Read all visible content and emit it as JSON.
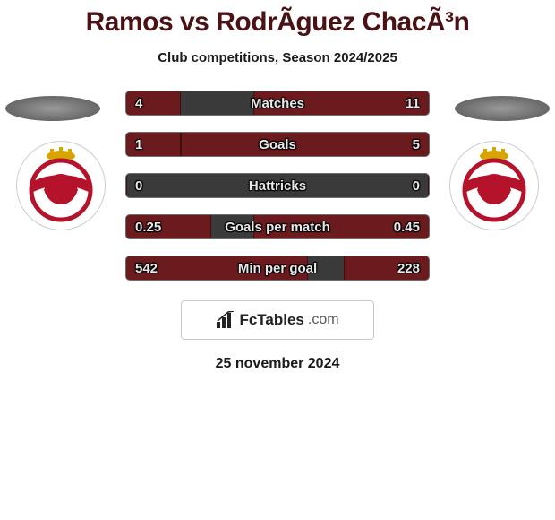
{
  "title": "Ramos vs RodrÃ­guez ChacÃ³n",
  "subtitle": "Club competitions, Season 2024/2025",
  "date": "25 november 2024",
  "brand": {
    "name": "FcTables",
    "domain": ".com"
  },
  "colors": {
    "bar_bg": "#3a3a3a",
    "bar_border": "#6d6d6d",
    "bar_fill": "#6b1a1e",
    "title": "#4a1214"
  },
  "bars": [
    {
      "label": "Matches",
      "left_val": "4",
      "right_val": "11",
      "left_pct": 18,
      "right_pct": 58
    },
    {
      "label": "Goals",
      "left_val": "1",
      "right_val": "5",
      "left_pct": 18,
      "right_pct": 82
    },
    {
      "label": "Hattricks",
      "left_val": "0",
      "right_val": "0",
      "left_pct": 0,
      "right_pct": 0
    },
    {
      "label": "Goals per match",
      "left_val": "0.25",
      "right_val": "0.45",
      "left_pct": 28,
      "right_pct": 58
    },
    {
      "label": "Min per goal",
      "left_val": "542",
      "right_val": "228",
      "left_pct": 60,
      "right_pct": 28
    }
  ],
  "crest": {
    "ribbon_color": "#b5132c",
    "crown_color": "#d8a400",
    "lion_color": "#b5132c"
  }
}
